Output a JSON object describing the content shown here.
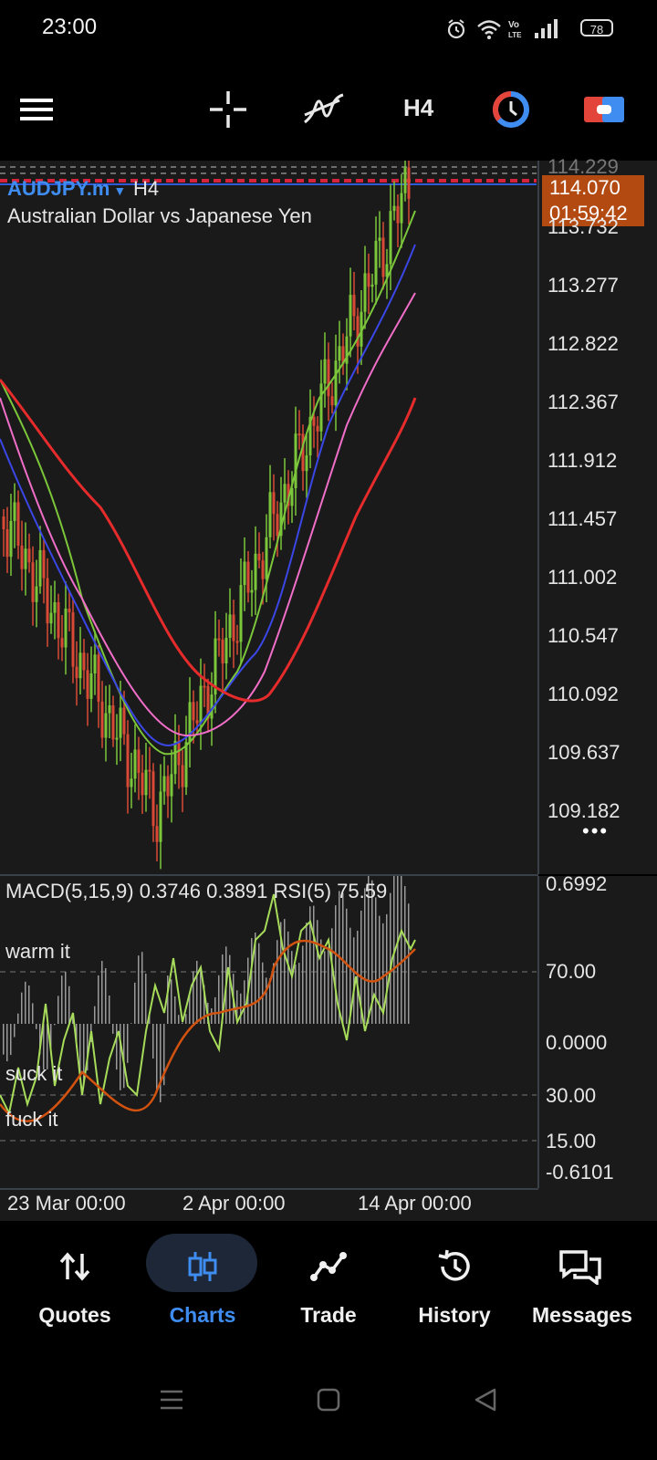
{
  "status_bar": {
    "time": "23:00",
    "battery": "78",
    "icons": [
      "alarm-icon",
      "wifi-icon",
      "volte-icon",
      "signal-icon",
      "battery-icon"
    ]
  },
  "toolbar": {
    "timeframe": "H4",
    "icons": [
      "menu-icon",
      "crosshair-icon",
      "indicators-icon",
      "timeframe-selector",
      "period-icon",
      "trade-icon"
    ]
  },
  "chart": {
    "symbol": "AUDJPY.m",
    "timeframe": "H4",
    "description": "Australian Dollar vs Japanese Yen",
    "current_price": "114.070",
    "countdown": "01:59:42",
    "top_price_label": "114.229",
    "price_levels": [
      "113.732",
      "113.277",
      "112.822",
      "112.367",
      "111.912",
      "111.457",
      "111.002",
      "110.547",
      "110.092",
      "109.637",
      "109.182"
    ],
    "more_label": "•••"
  },
  "indicator": {
    "caption": "MACD(5,15,9) 0.3746 0.3891 RSI(5) 75.59",
    "levels": [
      "0.6992",
      "70.00",
      "0.0000",
      "30.00",
      "15.00",
      "-0.6101"
    ],
    "level_notes": [
      "warm it",
      "suck it",
      "fuck it"
    ]
  },
  "time_axis": {
    "labels": [
      "23 Mar 00:00",
      "2 Apr 00:00",
      "14 Apr 00:00"
    ]
  },
  "bottom_nav": {
    "items": [
      {
        "label": "Quotes",
        "icon": "quotes-icon",
        "active": false
      },
      {
        "label": "Charts",
        "icon": "charts-icon",
        "active": true
      },
      {
        "label": "Trade",
        "icon": "trade-icon",
        "active": false
      },
      {
        "label": "History",
        "icon": "history-icon",
        "active": false
      },
      {
        "label": "Messages",
        "icon": "messages-icon",
        "active": false
      }
    ]
  },
  "colors": {
    "bull": "#7bc63a",
    "bear": "#d84a35",
    "accent": "#3f8df0",
    "price_box": "#b34a12"
  }
}
